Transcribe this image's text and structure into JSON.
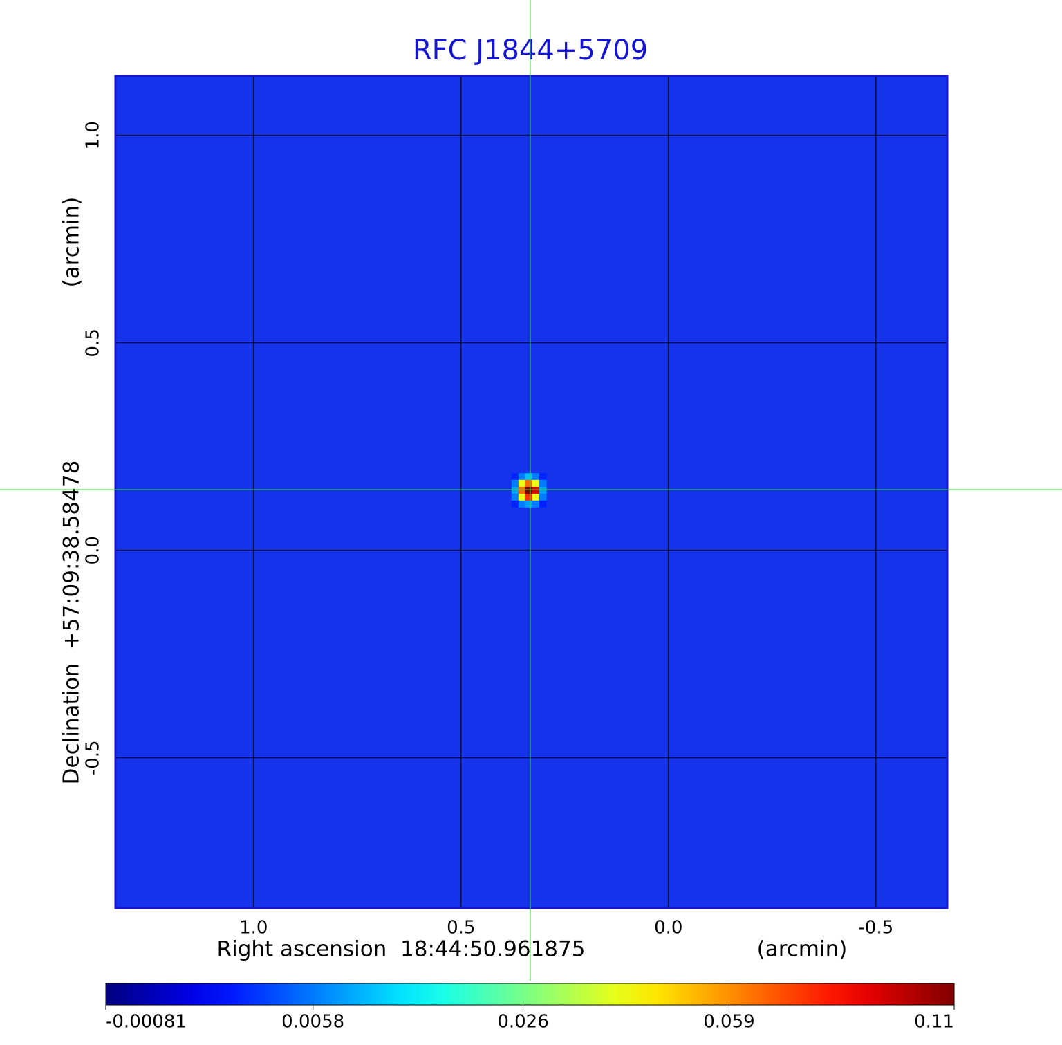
{
  "chart_data": {
    "type": "image",
    "title": "RFC J1844+5709",
    "xlabel": "Right ascension  18:44:50.961875",
    "xunit": "(arcmin)",
    "ylabel": "Declination  +57:09:38.58478",
    "yunit": "(arcmin)",
    "xlim": [
      1.333,
      -0.672
    ],
    "ylim": [
      -0.862,
      1.143
    ],
    "xticks": [
      {
        "value": 1,
        "label": "1.0"
      },
      0.5,
      {
        "value": 0,
        "label": "0.0"
      },
      -0.5
    ],
    "yticks": [
      {
        "value": 1,
        "label": "1.0"
      },
      0.5,
      {
        "value": 0,
        "label": "0.0"
      },
      -0.5
    ],
    "grid": true,
    "x": [
      0.37,
      0.353,
      0.337,
      0.32,
      0.303
    ],
    "y": [
      0.178,
      0.162,
      0.145,
      0.128,
      0.112
    ],
    "values": [
      [
        0.002,
        0.006,
        0.01,
        0.006,
        0.002
      ],
      [
        0.006,
        0.04,
        0.065,
        0.04,
        0.006
      ],
      [
        0.008,
        0.065,
        0.11,
        0.09,
        0.008
      ],
      [
        0.006,
        0.04,
        0.075,
        0.04,
        0.006
      ],
      [
        0.002,
        0.006,
        0.008,
        0.006,
        0.002
      ]
    ],
    "colormap": "jet",
    "color_scale": "sqrt",
    "clim": [
      -0.00081,
      0.11
    ],
    "cticks": [
      -0.00081,
      0.0058,
      0.026,
      0.059,
      0.11
    ]
  }
}
